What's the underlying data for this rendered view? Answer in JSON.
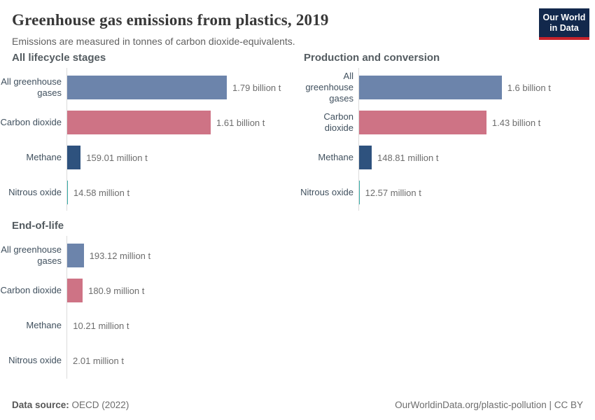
{
  "header": {
    "title": "Greenhouse gas emissions from plastics, 2019",
    "subtitle": "Emissions are measured in tonnes of carbon dioxide-equivalents.",
    "logo": {
      "line1": "Our World",
      "line2": "in Data"
    }
  },
  "footer": {
    "source_label": "Data source:",
    "source_value": " OECD (2022)",
    "right_text": "OurWorldinData.org/plastic-pollution | CC BY"
  },
  "colors": {
    "bars": [
      "#6c84ab",
      "#ce7385",
      "#2e527e",
      "#38aca6"
    ],
    "axis_line": "#dcdcdc",
    "logo_background": "#12284c",
    "logo_underline": "#c7232b"
  },
  "chart_data": [
    {
      "type": "bar",
      "orientation": "horizontal",
      "title": "All lifecycle stages",
      "categories": [
        "All greenhouse gases",
        "Carbon dioxide",
        "Methane",
        "Nitrous oxide"
      ],
      "values_tonnes": [
        1790000000,
        1610000000,
        159010000,
        14580000
      ],
      "value_labels": [
        "1.79 billion t",
        "1.61 billion t",
        "159.01 million t",
        "14.58 million t"
      ],
      "bar_colors": [
        "#6c84ab",
        "#ce7385",
        "#2e527e",
        "#38aca6"
      ],
      "x_scale_shared": true,
      "xlim_tonnes": [
        0,
        1790000000
      ],
      "grid": false,
      "legend": "none"
    },
    {
      "type": "bar",
      "orientation": "horizontal",
      "title": "Production and conversion",
      "categories": [
        "All greenhouse gases",
        "Carbon dioxide",
        "Methane",
        "Nitrous oxide"
      ],
      "values_tonnes": [
        1600000000,
        1430000000,
        148810000,
        12570000
      ],
      "value_labels": [
        "1.6 billion t",
        "1.43 billion t",
        "148.81 million t",
        "12.57 million t"
      ],
      "bar_colors": [
        "#6c84ab",
        "#ce7385",
        "#2e527e",
        "#38aca6"
      ],
      "x_scale_shared": true,
      "xlim_tonnes": [
        0,
        1790000000
      ],
      "grid": false,
      "legend": "none"
    },
    {
      "type": "bar",
      "orientation": "horizontal",
      "title": "End-of-life",
      "categories": [
        "All greenhouse gases",
        "Carbon dioxide",
        "Methane",
        "Nitrous oxide"
      ],
      "values_tonnes": [
        193120000,
        180900000,
        10210000,
        2010000
      ],
      "value_labels": [
        "193.12 million t",
        "180.9 million t",
        "10.21 million t",
        "2.01 million t"
      ],
      "bar_colors": [
        "#6c84ab",
        "#ce7385",
        "#2e527e",
        "#38aca6"
      ],
      "x_scale_shared": true,
      "xlim_tonnes": [
        0,
        1790000000
      ],
      "grid": false,
      "legend": "none"
    }
  ]
}
